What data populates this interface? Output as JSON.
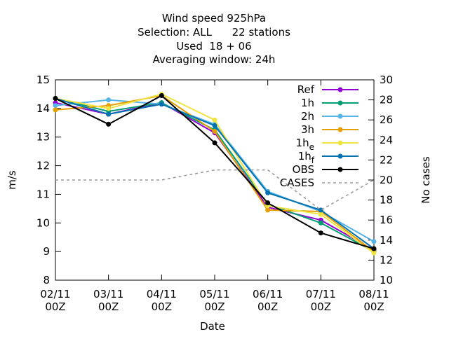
{
  "chart_data": {
    "type": "line",
    "title_lines": [
      "Wind speed 925hPa",
      "Selection: ALL      22 stations",
      "Used  18 + 06",
      "Averaging window: 24h"
    ],
    "xlabel": "Date",
    "ylabel": "m/s",
    "y2label": "No cases",
    "categories": [
      "02/11 00Z",
      "03/11 00Z",
      "04/11 00Z",
      "05/11 00Z",
      "06/11 00Z",
      "07/11 00Z",
      "08/11 00Z"
    ],
    "x_ticks": [
      {
        "top": "02/11",
        "bottom": "00Z"
      },
      {
        "top": "03/11",
        "bottom": "00Z"
      },
      {
        "top": "04/11",
        "bottom": "00Z"
      },
      {
        "top": "05/11",
        "bottom": "00Z"
      },
      {
        "top": "06/11",
        "bottom": "00Z"
      },
      {
        "top": "07/11",
        "bottom": "00Z"
      },
      {
        "top": "08/11",
        "bottom": "00Z"
      }
    ],
    "ylim": [
      8,
      15
    ],
    "y2lim": [
      10,
      30
    ],
    "yticks": [
      8,
      9,
      10,
      11,
      12,
      13,
      14,
      15
    ],
    "y2ticks": [
      10,
      12,
      14,
      16,
      18,
      20,
      22,
      24,
      26,
      28,
      30
    ],
    "legend_position": "top-right",
    "grid": false,
    "series": [
      {
        "name": "Ref",
        "sub": "",
        "color": "#9400d3",
        "axis": "y1",
        "values": [
          14.2,
          13.8,
          14.2,
          13.15,
          10.55,
          10.1,
          9.05
        ]
      },
      {
        "name": "1h",
        "sub": "",
        "color": "#009e73",
        "axis": "y1",
        "values": [
          14.35,
          13.9,
          14.2,
          13.25,
          10.65,
          10.0,
          9.0
        ]
      },
      {
        "name": "2h",
        "sub": "",
        "color": "#56b4e9",
        "axis": "y1",
        "values": [
          14.1,
          14.3,
          14.15,
          13.45,
          11.1,
          10.4,
          9.35
        ]
      },
      {
        "name": "3h",
        "sub": "",
        "color": "#e69f00",
        "axis": "y1",
        "values": [
          13.95,
          14.1,
          14.45,
          13.2,
          10.45,
          10.4,
          9.0
        ]
      },
      {
        "name": "1h",
        "sub": "e",
        "color": "#f0e442",
        "axis": "y1",
        "values": [
          14.35,
          14.0,
          14.5,
          13.6,
          10.6,
          10.3,
          8.95
        ]
      },
      {
        "name": "1h",
        "sub": "f",
        "color": "#0072b2",
        "axis": "y1",
        "values": [
          14.35,
          13.8,
          14.15,
          13.4,
          11.05,
          10.45,
          9.1
        ]
      },
      {
        "name": "OBS",
        "sub": "",
        "color": "#000000",
        "axis": "y1",
        "values": [
          14.35,
          13.45,
          14.45,
          12.8,
          10.7,
          9.65,
          9.1
        ]
      },
      {
        "name": "CASES",
        "sub": "",
        "color": "#999999",
        "axis": "y2",
        "dashed": true,
        "values": [
          20,
          20,
          20,
          21,
          21,
          17,
          20
        ]
      }
    ]
  }
}
